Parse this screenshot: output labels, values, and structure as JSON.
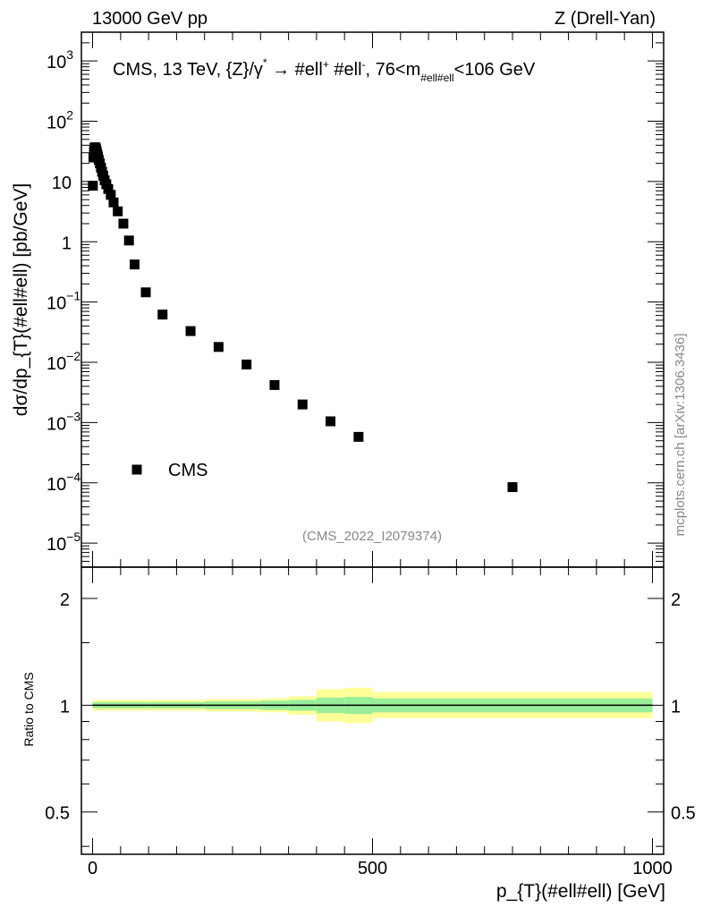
{
  "header": {
    "left": "13000 GeV pp",
    "right": "Z (Drell-Yan)"
  },
  "side_label": "mcplots.cern.ch [arXiv:1306.3436]",
  "watermark": "(CMS_2022_I2079374)",
  "colors": {
    "marker": "#000000",
    "band_outer": "#ffff99",
    "band_inner": "#99ee99",
    "frame": "#000000",
    "grey_text": "#888888"
  },
  "chart_data": [
    {
      "id": "main",
      "type": "scatter",
      "title": "CMS, 13 TeV, {Z}/γ* → #ell+ #ell-, 76<m#ell#ell<106 GeV",
      "title_parts": {
        "prefix": "CMS, 13 TeV, {Z}/γ",
        "star": "*",
        "arrow": "→",
        "ell1": "#ell",
        "plus": "+",
        "ell2": "#ell",
        "minus": "-",
        "range_left": ", 76<m",
        "range_sub": "#ell#ell",
        "range_right": "<106 GeV"
      },
      "ylabel": "dσ/dp_{T}(#ell#ell) [pb/GeV]",
      "yscale": "log",
      "ylim": [
        4e-06,
        3000
      ],
      "xlim": [
        -20,
        1020
      ],
      "yticks": [
        {
          "v": 1e-05,
          "base": "10",
          "exp": "−5"
        },
        {
          "v": 0.0001,
          "base": "10",
          "exp": "−4"
        },
        {
          "v": 0.001,
          "base": "10",
          "exp": "−3"
        },
        {
          "v": 0.01,
          "base": "10",
          "exp": "−2"
        },
        {
          "v": 0.1,
          "base": "10",
          "exp": "−1"
        },
        {
          "v": 1,
          "base": "1",
          "exp": ""
        },
        {
          "v": 10,
          "base": "10",
          "exp": ""
        },
        {
          "v": 100,
          "base": "10",
          "exp": "2"
        },
        {
          "v": 1000,
          "base": "10",
          "exp": "3"
        }
      ],
      "legend": {
        "label": "CMS",
        "position": "lower-left"
      },
      "series": [
        {
          "name": "CMS",
          "x": [
            0.5,
            1.5,
            2.5,
            3.5,
            4.5,
            5.5,
            6.5,
            7.5,
            8.5,
            9.5,
            11,
            13,
            15,
            17,
            19,
            21.5,
            24.5,
            28,
            32.5,
            37.5,
            45,
            55,
            65,
            75,
            95,
            125,
            175,
            225,
            275,
            325,
            375,
            425,
            475,
            750
          ],
          "y": [
            8.5,
            25,
            32,
            36,
            37,
            36,
            34,
            31,
            28,
            26,
            23,
            20,
            17,
            14.5,
            12.5,
            10.5,
            9,
            7.5,
            6,
            4.5,
            3.2,
            2.0,
            1.05,
            0.42,
            0.145,
            0.062,
            0.033,
            0.018,
            0.0092,
            0.0042,
            0.002,
            0.00105,
            0.00058,
            8.5e-05
          ]
        }
      ]
    },
    {
      "id": "ratio",
      "type": "area",
      "ylabel": "Ratio to CMS",
      "xlabel": "p_{T}(#ell#ell) [GeV]",
      "xlim": [
        -20,
        1020
      ],
      "ylim": [
        0.38,
        2.45
      ],
      "xticks": [
        0,
        500,
        1000
      ],
      "xtick_labels": [
        "0",
        "500",
        "1000"
      ],
      "yticks": [
        0.5,
        1,
        2
      ],
      "ytick_labels": [
        "0.5",
        "1",
        "2"
      ],
      "series": [
        {
          "name": "stat+sys (outer)",
          "x_edges": [
            0,
            100,
            200,
            300,
            350,
            400,
            450,
            500,
            1000
          ],
          "lo": [
            0.965,
            0.965,
            0.96,
            0.955,
            0.94,
            0.9,
            0.89,
            0.92,
            0.92
          ],
          "hi": [
            1.035,
            1.035,
            1.04,
            1.045,
            1.06,
            1.11,
            1.12,
            1.09,
            1.09
          ]
        },
        {
          "name": "stat (inner)",
          "x_edges": [
            0,
            100,
            200,
            300,
            350,
            400,
            450,
            500,
            1000
          ],
          "lo": [
            0.98,
            0.98,
            0.975,
            0.97,
            0.965,
            0.95,
            0.945,
            0.955,
            0.955
          ],
          "hi": [
            1.02,
            1.02,
            1.025,
            1.03,
            1.035,
            1.05,
            1.055,
            1.045,
            1.045
          ]
        }
      ]
    }
  ]
}
